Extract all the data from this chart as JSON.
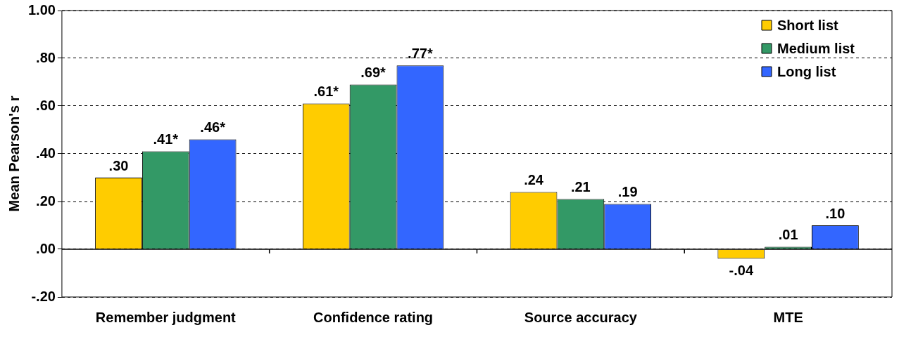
{
  "chart_data": {
    "type": "bar",
    "ylabel": "Mean Pearson's r",
    "categories": [
      "Remember judgment",
      "Confidence rating",
      "Source accuracy",
      "MTE"
    ],
    "series": [
      {
        "name": "Short list",
        "color": "#ffcc00",
        "values": [
          0.3,
          0.61,
          0.24,
          -0.04
        ],
        "value_labels": [
          ".30",
          ".61*",
          ".24",
          "-.04"
        ]
      },
      {
        "name": "Medium list",
        "color": "#339966",
        "values": [
          0.41,
          0.69,
          0.21,
          0.01
        ],
        "value_labels": [
          ".41*",
          ".69*",
          ".21",
          ".01"
        ]
      },
      {
        "name": "Long list",
        "color": "#3366ff",
        "values": [
          0.46,
          0.77,
          0.19,
          0.1
        ],
        "value_labels": [
          ".46*",
          ".77*",
          ".19",
          ".10"
        ]
      }
    ],
    "ylim": [
      -0.2,
      1.0
    ],
    "yticks": [
      {
        "value": -0.2,
        "label": "-.20"
      },
      {
        "value": 0,
        "label": ".00"
      },
      {
        "value": 0.2,
        "label": ".20"
      },
      {
        "value": 0.4,
        "label": ".40"
      },
      {
        "value": 0.6,
        "label": ".60"
      },
      {
        "value": 0.8,
        "label": ".80"
      },
      {
        "value": 1.0,
        "label": "1.00"
      }
    ],
    "grid": "y",
    "legend": "top right"
  }
}
